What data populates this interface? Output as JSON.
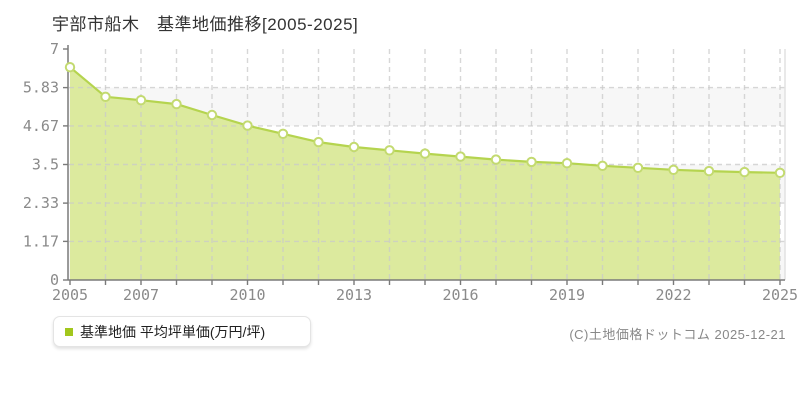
{
  "header": {
    "title": "宇部市船木　基準地価推移[2005-2025]"
  },
  "chart_data": {
    "type": "area",
    "title": "宇部市船木 基準地価推移[2005-2025]",
    "series_name": "基準地価",
    "x": [
      2005,
      2006,
      2007,
      2008,
      2009,
      2010,
      2011,
      2012,
      2013,
      2014,
      2015,
      2016,
      2017,
      2018,
      2019,
      2020,
      2021,
      2022,
      2023,
      2024,
      2025
    ],
    "values": [
      6.45,
      5.55,
      5.45,
      5.33,
      5.0,
      4.68,
      4.43,
      4.18,
      4.03,
      3.93,
      3.83,
      3.74,
      3.65,
      3.58,
      3.54,
      3.46,
      3.4,
      3.34,
      3.3,
      3.27,
      3.25
    ],
    "ylabel": "平均坪単価(万円/坪)",
    "ylim": [
      0,
      7
    ],
    "yticks": [
      7,
      5.83,
      4.67,
      3.5,
      2.33,
      1.17,
      0
    ],
    "ytick_labels": [
      "7",
      "5.83",
      "4.67",
      "3.5",
      "2.33",
      "1.17",
      "0"
    ],
    "xtick_labeled_years": [
      2005,
      2007,
      2010,
      2013,
      2016,
      2019,
      2022,
      2025
    ],
    "grid": "dashed",
    "legend_position": "bottom-left",
    "colors": {
      "area_fill": "#dcea9e",
      "line": "#b5d44f",
      "marker_fill": "#ffffff",
      "marker_stroke": "#c3da70",
      "grid": "#c9c9c9",
      "axis": "#7a7a7a",
      "band_alt": "#f7f7f7",
      "band_main": "#ffffff",
      "right_border": "#e2e2e2",
      "tick_text": "#8a8a8a"
    }
  },
  "legend": {
    "bullet_color": "#a2c71d",
    "label": "基準地価 平均坪単価(万円/坪)"
  },
  "footer": {
    "copyright": "(C)土地価格ドットコム 2025-12-21"
  }
}
